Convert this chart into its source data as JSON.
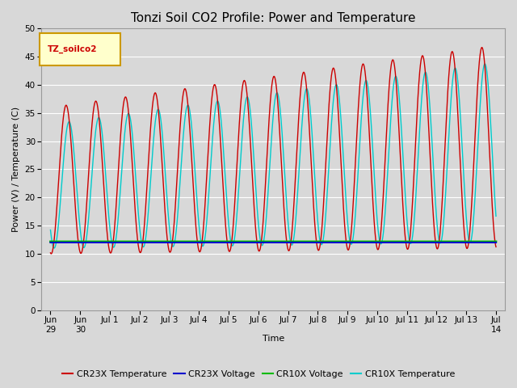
{
  "title": "Tonzi Soil CO2 Profile: Power and Temperature",
  "xlabel": "Time",
  "ylabel": "Power (V) / Temperature (C)",
  "ylim": [
    0,
    50
  ],
  "xlim_start": -0.3,
  "xlim_end": 15.3,
  "x_tick_labels": [
    "Jun\n29",
    "Jun\n30",
    "Jul 1",
    "Jul 2",
    "Jul 3",
    "Jul 4",
    "Jul 5",
    "Jul 6",
    "Jul 7",
    "Jul 8",
    "Jul 9",
    "Jul 10",
    "Jul 11",
    "Jul 12",
    "Jul 13",
    "Jul\n14"
  ],
  "x_tick_positions": [
    0,
    1,
    2,
    3,
    4,
    5,
    6,
    7,
    8,
    9,
    10,
    11,
    12,
    13,
    14,
    15
  ],
  "yticks": [
    0,
    5,
    10,
    15,
    20,
    25,
    30,
    35,
    40,
    45,
    50
  ],
  "bg_color": "#d8d8d8",
  "plot_bg_color": "#d8d8d8",
  "grid_color": "#ffffff",
  "legend_box_label": "TZ_soilco2",
  "legend_box_color": "#ffffcc",
  "legend_box_border": "#cc9900",
  "cr23x_temp_color": "#cc0000",
  "cr23x_volt_color": "#0000cc",
  "cr10x_volt_color": "#00bb00",
  "cr10x_temp_color": "#00cccc",
  "voltage_value": 12.0,
  "total_days": 15.0,
  "title_fontsize": 11,
  "axis_label_fontsize": 8,
  "tick_fontsize": 7.5,
  "legend_fontsize": 8
}
